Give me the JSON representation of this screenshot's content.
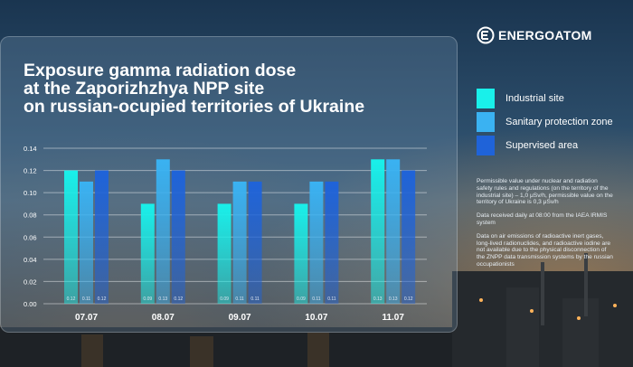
{
  "brand": {
    "name": "ENERGOATOM"
  },
  "title": {
    "line1": "Exposure gamma radiation dose",
    "line2": "at the Zaporizhzhya NPP site",
    "line3": "on russian-ocupied territories of Ukraine"
  },
  "legend": [
    {
      "label": "Industrial site",
      "color": "#19f0ea"
    },
    {
      "label": "Sanitary protection zone",
      "color": "#3ab2f2"
    },
    {
      "label": "Supervised area",
      "color": "#1f63d9"
    }
  ],
  "notes": [
    "Permissible value under nuclear and radiation\nsafety rules and regulations (on the territory of the\nindustrial site) – 1,0 μSv/h, permissible value on the\nterritory of Ukraine is 0,3 μSv/h",
    "Data received daily at 08:00 from the IAEA IRMIS\nsystem",
    "Data on air emissions of radioactive inert gases,\nlong-lived radionuclides, and radioactive iodine are\nnot available due to the physical disconnection of\nthe ZNPP data transmission systems by the russian\noccupationists"
  ],
  "chart_data": {
    "type": "bar",
    "categories": [
      "07.07",
      "08.07",
      "09.07",
      "10.07",
      "11.07"
    ],
    "series": [
      {
        "name": "Industrial site",
        "values": [
          0.12,
          0.09,
          0.09,
          0.09,
          0.13
        ],
        "labels": [
          "0.12",
          "0.09",
          "0.09",
          "0.09",
          "0.13"
        ]
      },
      {
        "name": "Sanitary protection zone",
        "values": [
          0.11,
          0.13,
          0.11,
          0.11,
          0.13
        ],
        "labels": [
          "0.11",
          "0.13",
          "0.11",
          "0.11",
          "0.13"
        ]
      },
      {
        "name": "Supervised area",
        "values": [
          0.12,
          0.12,
          0.11,
          0.11,
          0.12
        ],
        "labels": [
          "0.12",
          "0.12",
          "0.11",
          "0.11",
          "0.12"
        ]
      }
    ],
    "yticks": [
      "0.00",
      "0.02",
      "0.04",
      "0.06",
      "0.08",
      "0.10",
      "0.12",
      "0.14"
    ],
    "ylim": [
      0,
      0.14
    ],
    "grid": true,
    "legend": "right"
  }
}
